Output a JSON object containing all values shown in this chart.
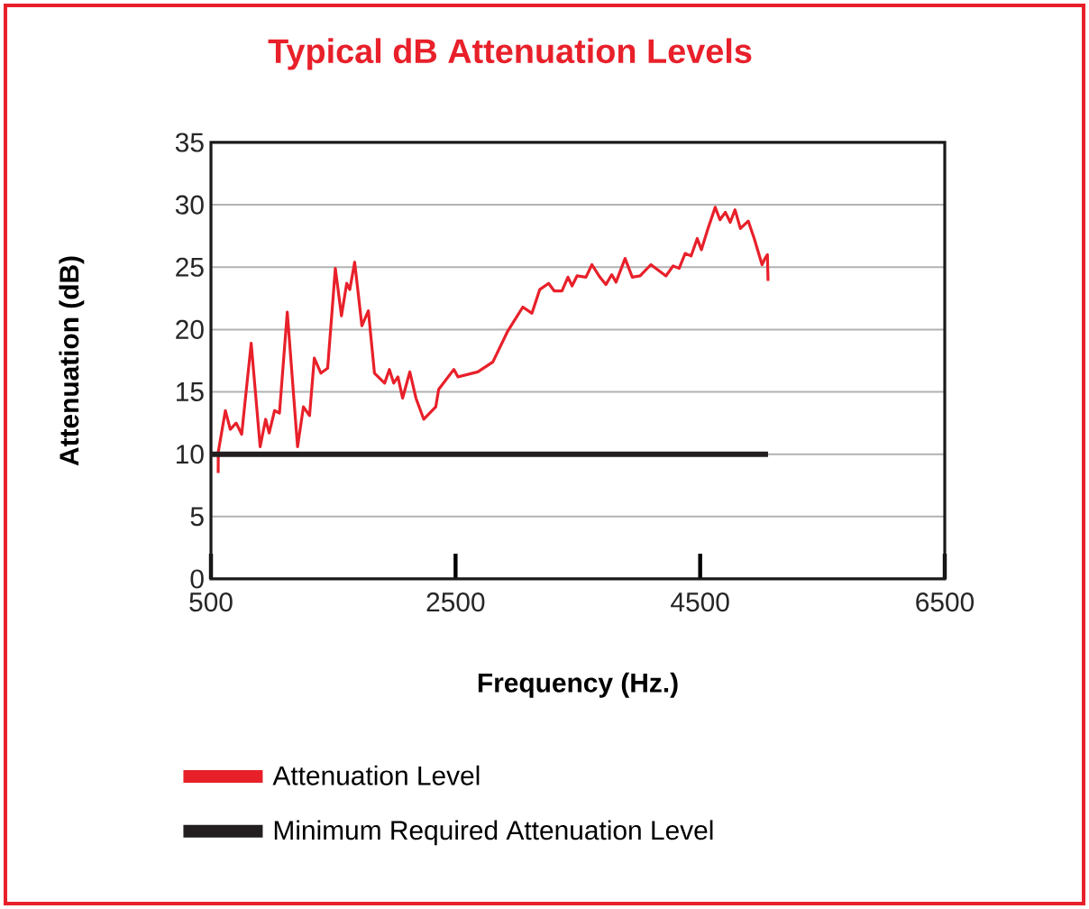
{
  "chart_data": {
    "type": "line",
    "title": "Typical dB Attenuation Levels",
    "xlabel": "Frequency (Hz.)",
    "ylabel": "Attenuation (dB)",
    "xlim": [
      500,
      6500
    ],
    "xticks": [
      500,
      2500,
      4500,
      6500
    ],
    "ylim": [
      0,
      35
    ],
    "yticks": [
      0,
      5,
      10,
      15,
      20,
      25,
      30,
      35
    ],
    "grid": "y",
    "legend": "bottom",
    "marker": "none",
    "line_style": "solid",
    "series": [
      {
        "name": "Attenuation Level",
        "color": "#e8202a",
        "x": [
          559,
          560,
          618,
          658,
          706,
          751,
          829,
          902,
          947,
          976,
          1020,
          1060,
          1124,
          1208,
          1256,
          1306,
          1345,
          1399,
          1454,
          1517,
          1567,
          1610,
          1635,
          1675,
          1734,
          1787,
          1837,
          1920,
          1959,
          1994,
          2029,
          2067,
          2126,
          2176,
          2240,
          2338,
          2362,
          2486,
          2520,
          2682,
          2805,
          2928,
          3050,
          3124,
          3188,
          3261,
          3306,
          3370,
          3419,
          3453,
          3493,
          3566,
          3615,
          3680,
          3729,
          3777,
          3812,
          3886,
          3945,
          4009,
          4097,
          4220,
          4279,
          4328,
          4377,
          4426,
          4476,
          4510,
          4564,
          4623,
          4662,
          4706,
          4746,
          4785,
          4829,
          4893,
          4942,
          5006,
          5030,
          5050,
          5055
        ],
        "values": [
          8.5,
          10.2,
          13.5,
          12.0,
          12.5,
          11.6,
          18.9,
          10.6,
          12.8,
          11.7,
          13.5,
          13.3,
          21.4,
          10.6,
          13.8,
          13.1,
          17.7,
          16.5,
          16.9,
          24.9,
          21.1,
          23.7,
          23.2,
          25.4,
          20.3,
          21.5,
          16.5,
          15.7,
          16.8,
          15.7,
          16.2,
          14.5,
          16.6,
          14.5,
          12.8,
          13.8,
          15.2,
          16.8,
          16.2,
          16.6,
          17.4,
          19.9,
          21.8,
          21.3,
          23.2,
          23.7,
          23.1,
          23.1,
          24.2,
          23.5,
          24.3,
          24.2,
          25.2,
          24.2,
          23.6,
          24.4,
          23.8,
          25.7,
          24.2,
          24.3,
          25.2,
          24.3,
          25.1,
          24.9,
          26.1,
          25.9,
          27.3,
          26.4,
          28.1,
          29.8,
          28.8,
          29.4,
          28.6,
          29.6,
          28.1,
          28.7,
          27.3,
          25.2,
          25.7,
          26.0,
          23.9
        ]
      },
      {
        "name": "Minimum Required Attenuation Level",
        "color": "#231f20",
        "x": [
          500,
          5055
        ],
        "values": [
          10,
          10
        ]
      }
    ]
  }
}
